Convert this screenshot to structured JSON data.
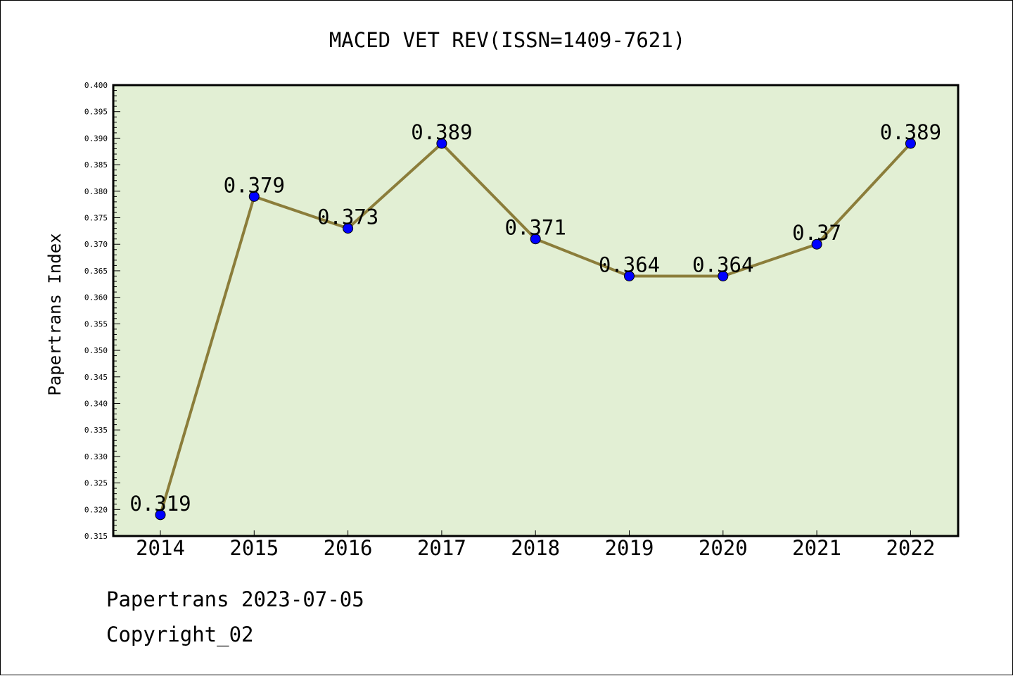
{
  "chart_data": {
    "type": "line",
    "title": "MACED VET REV(ISSN=1409-7621)",
    "ylabel": "Papertrans Index",
    "xlabel": "",
    "categories": [
      "2014",
      "2015",
      "2016",
      "2017",
      "2018",
      "2019",
      "2020",
      "2021",
      "2022"
    ],
    "series": [
      {
        "values": [
          0.319,
          0.379,
          0.373,
          0.389,
          0.371,
          0.364,
          0.364,
          0.37,
          0.389
        ],
        "labels": [
          "0.319",
          "0.379",
          "0.373",
          "0.389",
          "0.371",
          "0.364",
          "0.364",
          "0.37",
          "0.389"
        ]
      }
    ],
    "ylim": [
      0.315,
      0.4
    ],
    "yticks": [
      "0.315",
      "0.320",
      "0.325",
      "0.330",
      "0.335",
      "0.340",
      "0.345",
      "0.350",
      "0.355",
      "0.360",
      "0.365",
      "0.370",
      "0.375",
      "0.380",
      "0.385",
      "0.390",
      "0.395",
      "0.400"
    ],
    "grid": false,
    "colors": {
      "plot_background": "#e2efd4",
      "line": "#8b7d3a",
      "marker": "#0000ff"
    }
  },
  "footer": {
    "date_line": "Papertrans 2023-07-05",
    "copyright": "Copyright_02"
  }
}
